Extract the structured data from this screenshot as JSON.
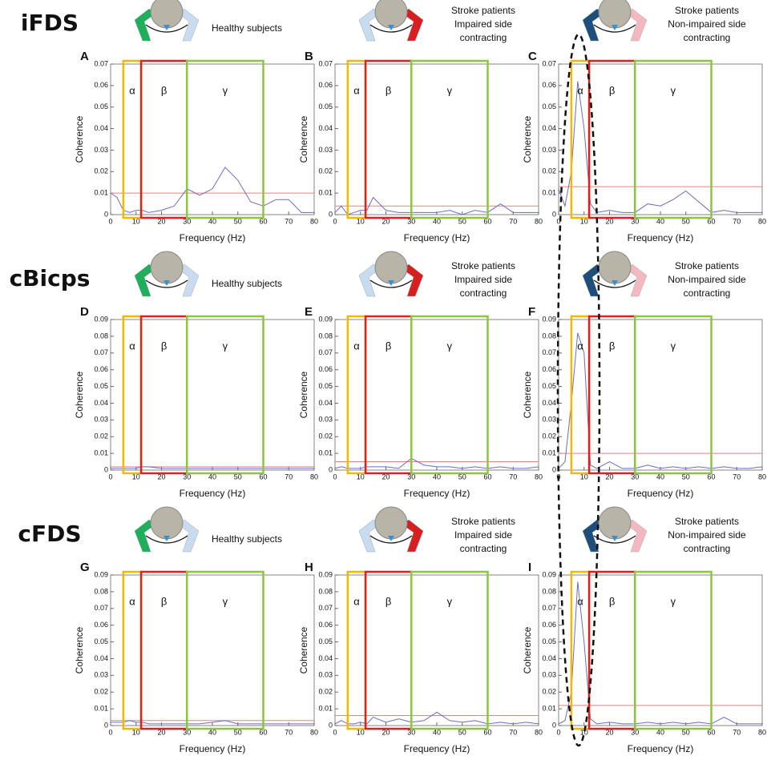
{
  "row_labels": [
    "iFDS",
    "cBicps",
    "cFDS"
  ],
  "chart_data": [
    {
      "type": "line",
      "panel": "A",
      "header": [
        "Healthy subjects"
      ],
      "ylabel": "Coherence",
      "xlabel": "Frequency (Hz)",
      "x": [
        0,
        2.5,
        5,
        7.5,
        10,
        12.5,
        15,
        20,
        25,
        30,
        35,
        40,
        45,
        50,
        55,
        60,
        65,
        70,
        75,
        80
      ],
      "values": [
        0.01,
        0.008,
        0.002,
        0.001,
        0.002,
        0.002,
        0.001,
        0.002,
        0.004,
        0.012,
        0.009,
        0.012,
        0.022,
        0.016,
        0.006,
        0.004,
        0.007,
        0.007,
        0.001,
        0.001
      ],
      "threshold": 0.01,
      "color": "#6b6bc8",
      "threshold_color": "#e88080",
      "xlim": [
        0,
        80
      ],
      "xticks": [
        0,
        10,
        20,
        30,
        40,
        50,
        60,
        70,
        80
      ],
      "ylim": [
        0,
        0.07
      ],
      "yticks": [
        0,
        0.01,
        0.02,
        0.03,
        0.04,
        0.05,
        0.06,
        0.07
      ],
      "bands": [
        {
          "label": "α",
          "range": [
            5,
            12
          ],
          "color": "#f5b800"
        },
        {
          "label": "β",
          "range": [
            12,
            30
          ],
          "color": "#e02020"
        },
        {
          "label": "γ",
          "range": [
            30,
            60
          ],
          "color": "#8cc63f"
        }
      ]
    },
    {
      "type": "line",
      "panel": "B",
      "header": [
        "Stroke patients",
        "Impaired side",
        "contracting"
      ],
      "ylabel": "Coherence",
      "xlabel": "Frequency (Hz)",
      "x": [
        0,
        2.5,
        5,
        7.5,
        10,
        12.5,
        15,
        20,
        25,
        30,
        35,
        40,
        45,
        50,
        55,
        60,
        65,
        70,
        75,
        80
      ],
      "values": [
        0.001,
        0.004,
        0,
        0.001,
        0.002,
        0.002,
        0.008,
        0.002,
        0.001,
        0.001,
        0.001,
        0.001,
        0.002,
        0,
        0.002,
        0.001,
        0.005,
        0.001,
        0.001,
        0.001
      ],
      "threshold": 0.004,
      "color": "#6b6bc8",
      "threshold_color": "#e88080",
      "xlim": [
        0,
        80
      ],
      "xticks": [
        0,
        10,
        20,
        30,
        40,
        50,
        60,
        70,
        80
      ],
      "ylim": [
        0,
        0.07
      ],
      "yticks": [
        0,
        0.01,
        0.02,
        0.03,
        0.04,
        0.05,
        0.06,
        0.07
      ],
      "bands": [
        {
          "label": "α",
          "range": [
            5,
            12
          ],
          "color": "#f5b800"
        },
        {
          "label": "β",
          "range": [
            12,
            30
          ],
          "color": "#e02020"
        },
        {
          "label": "γ",
          "range": [
            30,
            60
          ],
          "color": "#8cc63f"
        }
      ]
    },
    {
      "type": "line",
      "panel": "C",
      "header": [
        "Stroke patients",
        "Non-impaired side",
        "contracting"
      ],
      "ylabel": "Coherence",
      "xlabel": "Frequency (Hz)",
      "x": [
        0,
        2.5,
        5,
        7.5,
        10,
        12.5,
        15,
        20,
        25,
        30,
        35,
        40,
        45,
        50,
        55,
        60,
        65,
        70,
        75,
        80
      ],
      "values": [
        0.012,
        0.004,
        0.02,
        0.062,
        0.04,
        0.005,
        0.001,
        0.002,
        0.001,
        0.001,
        0.005,
        0.004,
        0.007,
        0.011,
        0.006,
        0.001,
        0.002,
        0.001,
        0.001,
        0.001
      ],
      "threshold": 0.013,
      "color": "#6b6bc8",
      "threshold_color": "#e88080",
      "xlim": [
        0,
        80
      ],
      "xticks": [
        0,
        10,
        20,
        30,
        40,
        50,
        60,
        70,
        80
      ],
      "ylim": [
        0,
        0.07
      ],
      "yticks": [
        0,
        0.01,
        0.02,
        0.03,
        0.04,
        0.05,
        0.06,
        0.07
      ],
      "bands": [
        {
          "label": "α",
          "range": [
            5,
            12
          ],
          "color": "#f5b800"
        },
        {
          "label": "β",
          "range": [
            12,
            30
          ],
          "color": "#e02020"
        },
        {
          "label": "γ",
          "range": [
            30,
            60
          ],
          "color": "#8cc63f"
        }
      ]
    },
    {
      "type": "line",
      "panel": "D",
      "header": [
        "Healthy subjects"
      ],
      "ylabel": "Coherence",
      "xlabel": "Frequency (Hz)",
      "x": [
        0,
        2.5,
        5,
        7.5,
        10,
        12.5,
        15,
        20,
        25,
        30,
        35,
        40,
        45,
        50,
        55,
        60,
        65,
        70,
        75,
        80
      ],
      "values": [
        0.001,
        0.001,
        0.001,
        0.001,
        0.001,
        0.002,
        0.002,
        0.001,
        0.001,
        0.001,
        0.001,
        0.001,
        0.001,
        0.001,
        0.001,
        0.001,
        0.001,
        0.001,
        0.001,
        0.001
      ],
      "threshold": 0.002,
      "color": "#6b6bc8",
      "threshold_color": "#e88080",
      "xlim": [
        0,
        80
      ],
      "xticks": [
        0,
        10,
        20,
        30,
        40,
        50,
        60,
        70,
        80
      ],
      "ylim": [
        0,
        0.09
      ],
      "yticks": [
        0,
        0.01,
        0.02,
        0.03,
        0.04,
        0.05,
        0.06,
        0.07,
        0.08,
        0.09
      ],
      "bands": [
        {
          "label": "α",
          "range": [
            5,
            12
          ],
          "color": "#f5b800"
        },
        {
          "label": "β",
          "range": [
            12,
            30
          ],
          "color": "#e02020"
        },
        {
          "label": "γ",
          "range": [
            30,
            60
          ],
          "color": "#8cc63f"
        }
      ]
    },
    {
      "type": "line",
      "panel": "E",
      "header": [
        "Stroke patients",
        "Impaired side",
        "contracting"
      ],
      "ylabel": "Coherence",
      "xlabel": "Frequency (Hz)",
      "x": [
        0,
        2.5,
        5,
        7.5,
        10,
        12.5,
        15,
        20,
        25,
        30,
        35,
        40,
        45,
        50,
        55,
        60,
        65,
        70,
        75,
        80
      ],
      "values": [
        0.001,
        0.002,
        0.001,
        0.001,
        0.001,
        0.002,
        0.002,
        0.002,
        0.001,
        0.007,
        0.003,
        0.002,
        0.002,
        0.001,
        0.002,
        0.001,
        0.002,
        0.001,
        0.001,
        0.002
      ],
      "threshold": 0.005,
      "color": "#6b6bc8",
      "threshold_color": "#e88080",
      "xlim": [
        0,
        80
      ],
      "xticks": [
        0,
        10,
        20,
        30,
        40,
        50,
        60,
        70,
        80
      ],
      "ylim": [
        0,
        0.09
      ],
      "yticks": [
        0,
        0.01,
        0.02,
        0.03,
        0.04,
        0.05,
        0.06,
        0.07,
        0.08,
        0.09
      ],
      "bands": [
        {
          "label": "α",
          "range": [
            5,
            12
          ],
          "color": "#f5b800"
        },
        {
          "label": "β",
          "range": [
            12,
            30
          ],
          "color": "#e02020"
        },
        {
          "label": "γ",
          "range": [
            30,
            60
          ],
          "color": "#8cc63f"
        }
      ]
    },
    {
      "type": "line",
      "panel": "F",
      "header": [
        "Stroke patients",
        "Non-impaired side",
        "contracting"
      ],
      "ylabel": "Coherence",
      "xlabel": "Frequency (Hz)",
      "x": [
        0,
        2.5,
        5,
        7.5,
        10,
        12.5,
        15,
        20,
        25,
        30,
        35,
        40,
        45,
        50,
        55,
        60,
        65,
        70,
        75,
        80
      ],
      "values": [
        0.001,
        0.005,
        0.04,
        0.082,
        0.07,
        0.003,
        0.001,
        0.005,
        0.001,
        0.001,
        0.003,
        0.001,
        0.002,
        0.001,
        0.002,
        0.001,
        0.002,
        0.001,
        0.001,
        0.002
      ],
      "threshold": 0.01,
      "color": "#6b6bc8",
      "threshold_color": "#e88080",
      "xlim": [
        0,
        80
      ],
      "xticks": [
        0,
        10,
        20,
        30,
        40,
        50,
        60,
        70,
        80
      ],
      "ylim": [
        0,
        0.09
      ],
      "yticks": [
        0,
        0.01,
        0.02,
        0.03,
        0.04,
        0.05,
        0.06,
        0.07,
        0.08,
        0.09
      ],
      "bands": [
        {
          "label": "α",
          "range": [
            5,
            12
          ],
          "color": "#f5b800"
        },
        {
          "label": "β",
          "range": [
            12,
            30
          ],
          "color": "#e02020"
        },
        {
          "label": "γ",
          "range": [
            30,
            60
          ],
          "color": "#8cc63f"
        }
      ]
    },
    {
      "type": "line",
      "panel": "G",
      "header": [
        "Healthy subjects"
      ],
      "ylabel": "Coherence",
      "xlabel": "Frequency (Hz)",
      "x": [
        0,
        2.5,
        5,
        7.5,
        10,
        12.5,
        15,
        20,
        25,
        30,
        35,
        40,
        45,
        50,
        55,
        60,
        65,
        70,
        75,
        80
      ],
      "values": [
        0.002,
        0.002,
        0.002,
        0.003,
        0.002,
        0.002,
        0.001,
        0.001,
        0.001,
        0.001,
        0.001,
        0.002,
        0.003,
        0.001,
        0.001,
        0.001,
        0.001,
        0.001,
        0.001,
        0.001
      ],
      "threshold": 0.003,
      "color": "#6b6bc8",
      "threshold_color": "#e88080",
      "xlim": [
        0,
        80
      ],
      "xticks": [
        0,
        10,
        20,
        30,
        40,
        50,
        60,
        70,
        80
      ],
      "ylim": [
        0,
        0.09
      ],
      "yticks": [
        0,
        0.01,
        0.02,
        0.03,
        0.04,
        0.05,
        0.06,
        0.07,
        0.08,
        0.09
      ],
      "bands": [
        {
          "label": "α",
          "range": [
            5,
            12
          ],
          "color": "#f5b800"
        },
        {
          "label": "β",
          "range": [
            12,
            30
          ],
          "color": "#e02020"
        },
        {
          "label": "γ",
          "range": [
            30,
            60
          ],
          "color": "#8cc63f"
        }
      ]
    },
    {
      "type": "line",
      "panel": "H",
      "header": [
        "Stroke patients",
        "Impaired side",
        "contracting"
      ],
      "ylabel": "Coherence",
      "xlabel": "Frequency (Hz)",
      "x": [
        0,
        2.5,
        5,
        7.5,
        10,
        12.5,
        15,
        20,
        25,
        30,
        35,
        40,
        45,
        50,
        55,
        60,
        65,
        70,
        75,
        80
      ],
      "values": [
        0.001,
        0.003,
        0.001,
        0.001,
        0.002,
        0.001,
        0.005,
        0.002,
        0.004,
        0.002,
        0.003,
        0.008,
        0.003,
        0.002,
        0.003,
        0.001,
        0.002,
        0.001,
        0.002,
        0.001
      ],
      "threshold": 0.006,
      "color": "#6b6bc8",
      "threshold_color": "#e88080",
      "xlim": [
        0,
        80
      ],
      "xticks": [
        0,
        10,
        20,
        30,
        40,
        50,
        60,
        70,
        80
      ],
      "ylim": [
        0,
        0.09
      ],
      "yticks": [
        0,
        0.01,
        0.02,
        0.03,
        0.04,
        0.05,
        0.06,
        0.07,
        0.08,
        0.09
      ],
      "bands": [
        {
          "label": "α",
          "range": [
            5,
            12
          ],
          "color": "#f5b800"
        },
        {
          "label": "β",
          "range": [
            12,
            30
          ],
          "color": "#e02020"
        },
        {
          "label": "γ",
          "range": [
            30,
            60
          ],
          "color": "#8cc63f"
        }
      ]
    },
    {
      "type": "line",
      "panel": "I",
      "header": [
        "Stroke patients",
        "Non-impaired side",
        "contracting"
      ],
      "ylabel": "Coherence",
      "xlabel": "Frequency (Hz)",
      "x": [
        0,
        2.5,
        5,
        7.5,
        10,
        12.5,
        15,
        20,
        25,
        30,
        35,
        40,
        45,
        50,
        55,
        60,
        65,
        70,
        75,
        80
      ],
      "values": [
        0.001,
        0.003,
        0.02,
        0.086,
        0.05,
        0.004,
        0.001,
        0.002,
        0.001,
        0.001,
        0.002,
        0.001,
        0.002,
        0.001,
        0.002,
        0.001,
        0.005,
        0.001,
        0.001,
        0.001
      ],
      "threshold": 0.012,
      "color": "#6b6bc8",
      "threshold_color": "#e88080",
      "xlim": [
        0,
        80
      ],
      "xticks": [
        0,
        10,
        20,
        30,
        40,
        50,
        60,
        70,
        80
      ],
      "ylim": [
        0,
        0.09
      ],
      "yticks": [
        0,
        0.01,
        0.02,
        0.03,
        0.04,
        0.05,
        0.06,
        0.07,
        0.08,
        0.09
      ],
      "bands": [
        {
          "label": "α",
          "range": [
            5,
            12
          ],
          "color": "#f5b800"
        },
        {
          "label": "β",
          "range": [
            12,
            30
          ],
          "color": "#e02020"
        },
        {
          "label": "γ",
          "range": [
            30,
            60
          ],
          "color": "#8cc63f"
        }
      ]
    }
  ]
}
